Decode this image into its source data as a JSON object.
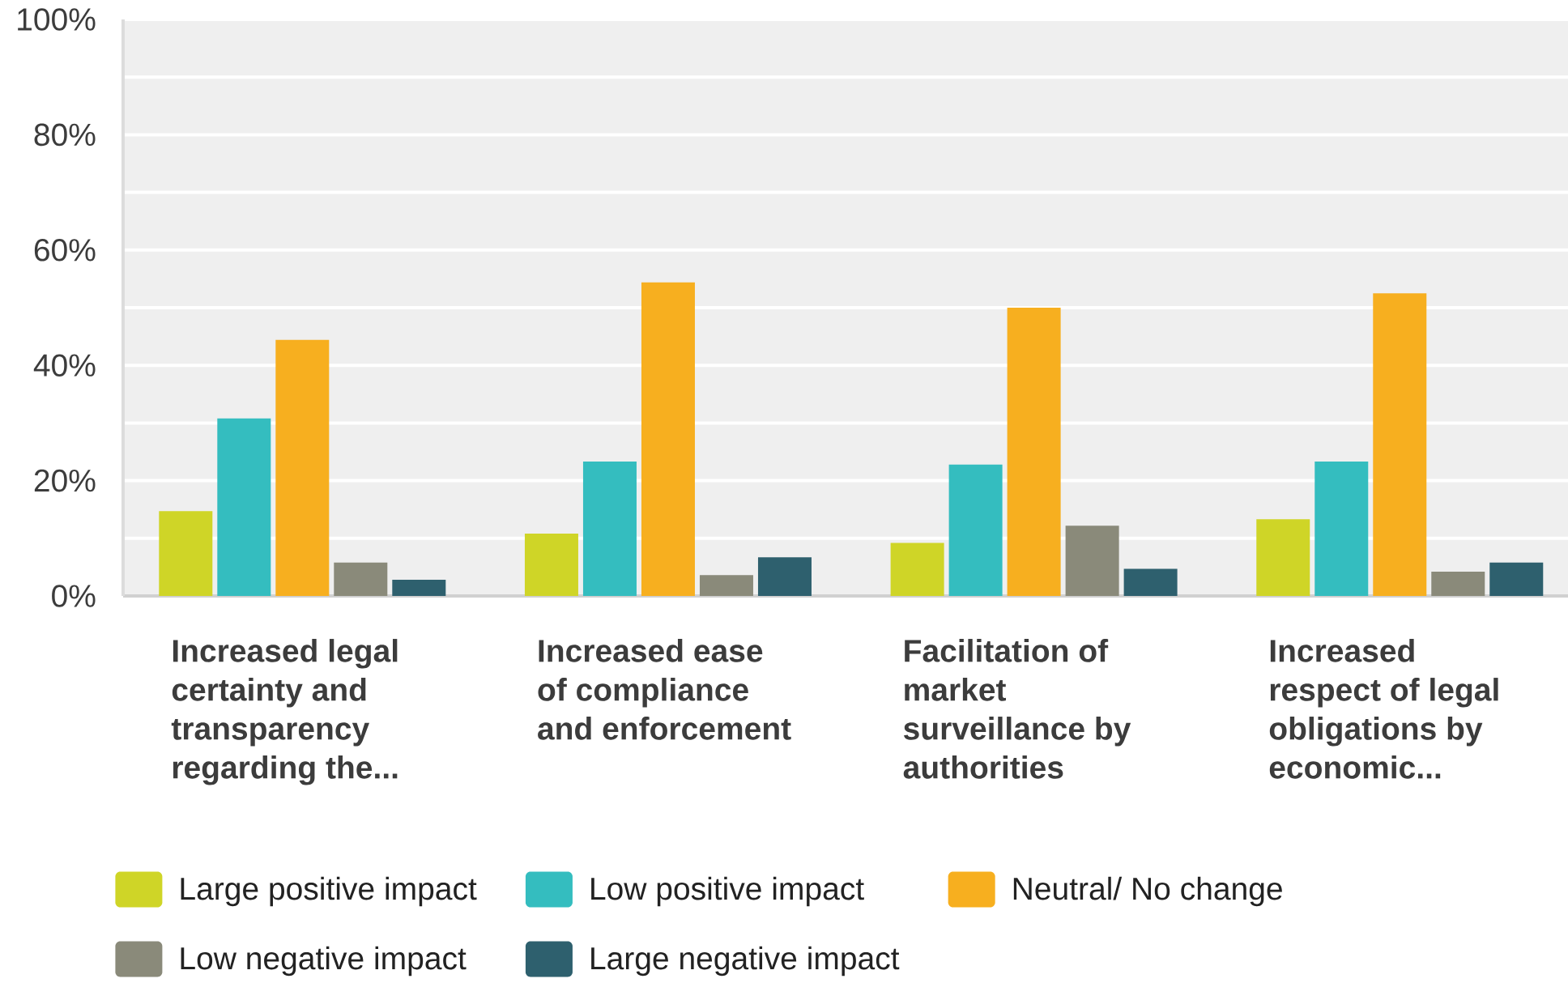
{
  "chart_data": {
    "type": "bar",
    "categories": [
      "Increased legal certainty and transparency regarding the...",
      "Increased ease of compliance and enforcement",
      "Facilitation of market surveillance by authorities",
      "Increased respect of legal obligations by economic..."
    ],
    "series": [
      {
        "name": "Large positive impact",
        "color": "#cfd527",
        "values": [
          14.7,
          10.8,
          9.2,
          13.3
        ]
      },
      {
        "name": "Low positive impact",
        "color": "#34bdbf",
        "values": [
          30.8,
          23.3,
          22.8,
          23.3
        ]
      },
      {
        "name": "Neutral/ No change",
        "color": "#f7af1f",
        "values": [
          44.4,
          54.4,
          50.0,
          52.5
        ]
      },
      {
        "name": "Low negative impact",
        "color": "#8a8a7a",
        "values": [
          5.8,
          3.6,
          12.2,
          4.2
        ]
      },
      {
        "name": "Large negative impact",
        "color": "#2e606e",
        "values": [
          2.8,
          6.7,
          4.7,
          5.8
        ]
      }
    ],
    "ylim": [
      0,
      100
    ],
    "yticks": [
      {
        "value": 0,
        "label": "0%"
      },
      {
        "value": 10,
        "label": null
      },
      {
        "value": 20,
        "label": "20%"
      },
      {
        "value": 30,
        "label": null
      },
      {
        "value": 40,
        "label": "40%"
      },
      {
        "value": 50,
        "label": null
      },
      {
        "value": 60,
        "label": "60%"
      },
      {
        "value": 70,
        "label": null
      },
      {
        "value": 80,
        "label": "80%"
      },
      {
        "value": 90,
        "label": null
      },
      {
        "value": 100,
        "label": "100%"
      }
    ],
    "grid": "y",
    "legend": "bottom"
  }
}
